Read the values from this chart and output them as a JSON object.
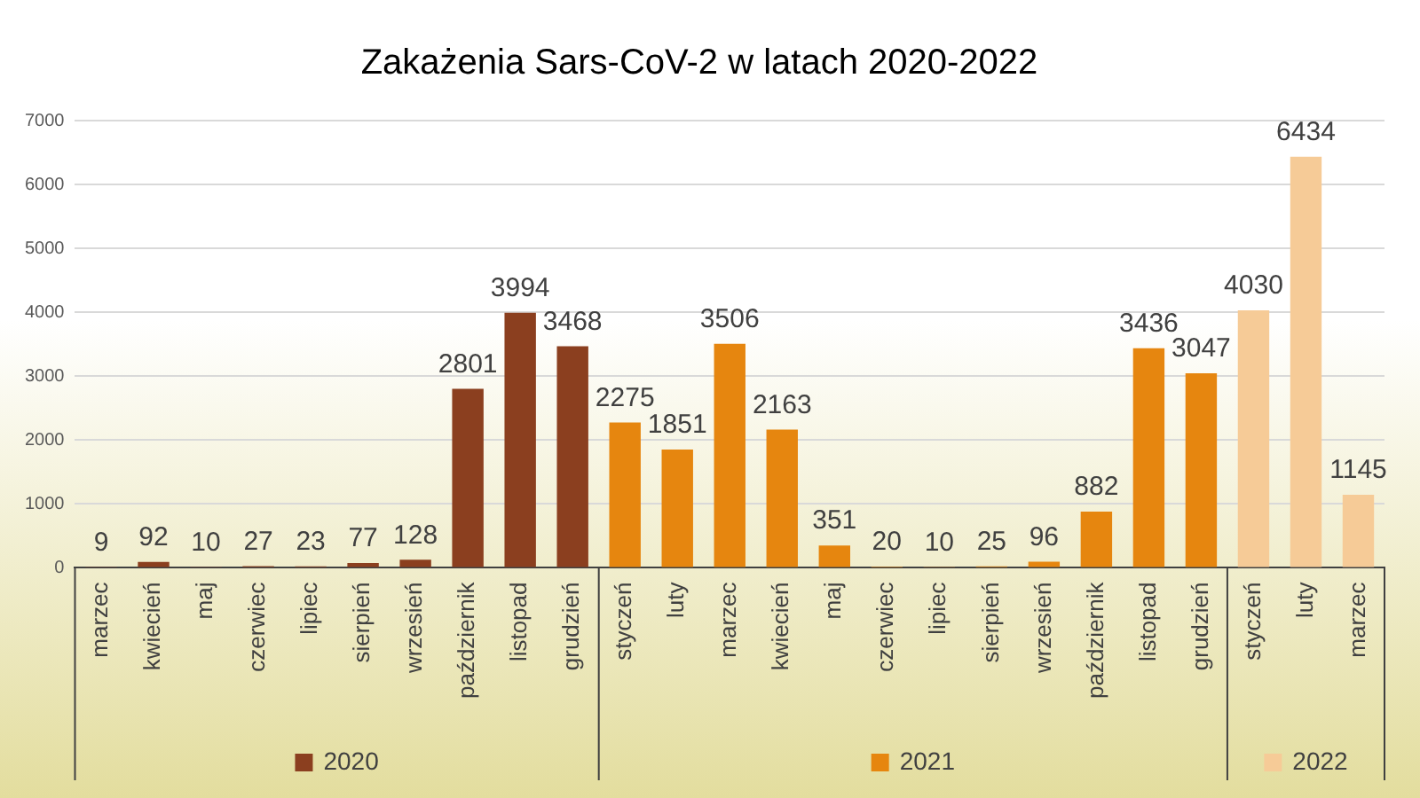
{
  "chart_data": {
    "type": "bar",
    "title": "Zakażenia Sars-CoV-2 w latach 2020-2022",
    "categories": [
      "marzec",
      "kwiecień",
      "maj",
      "czerwiec",
      "lipiec",
      "sierpień",
      "wrzesień",
      "październik",
      "listopad",
      "grudzień",
      "styczeń",
      "luty",
      "marzec",
      "kwiecień",
      "maj",
      "czerwiec",
      "lipiec",
      "sierpień",
      "wrzesień",
      "październik",
      "listopad",
      "grudzień",
      "styczeń",
      "luty",
      "marzec"
    ],
    "series": [
      {
        "name": "2020",
        "color": "#8b3f1f",
        "values": [
          9,
          92,
          10,
          27,
          23,
          77,
          128,
          2801,
          3994,
          3468,
          null,
          null,
          null,
          null,
          null,
          null,
          null,
          null,
          null,
          null,
          null,
          null,
          null,
          null,
          null
        ]
      },
      {
        "name": "2021",
        "color": "#e6860f",
        "values": [
          null,
          null,
          null,
          null,
          null,
          null,
          null,
          null,
          null,
          null,
          2275,
          1851,
          3506,
          2163,
          351,
          20,
          10,
          25,
          96,
          882,
          3436,
          3047,
          null,
          null,
          null
        ]
      },
      {
        "name": "2022",
        "color": "#f6cb97",
        "values": [
          null,
          null,
          null,
          null,
          null,
          null,
          null,
          null,
          null,
          null,
          null,
          null,
          null,
          null,
          null,
          null,
          null,
          null,
          null,
          null,
          null,
          null,
          4030,
          6434,
          1145
        ]
      }
    ],
    "ylim": [
      0,
      7000
    ],
    "yticks": [
      0,
      1000,
      2000,
      3000,
      4000,
      5000,
      6000,
      7000
    ],
    "grid": "y",
    "data_labels": true,
    "legend": "bottom"
  }
}
